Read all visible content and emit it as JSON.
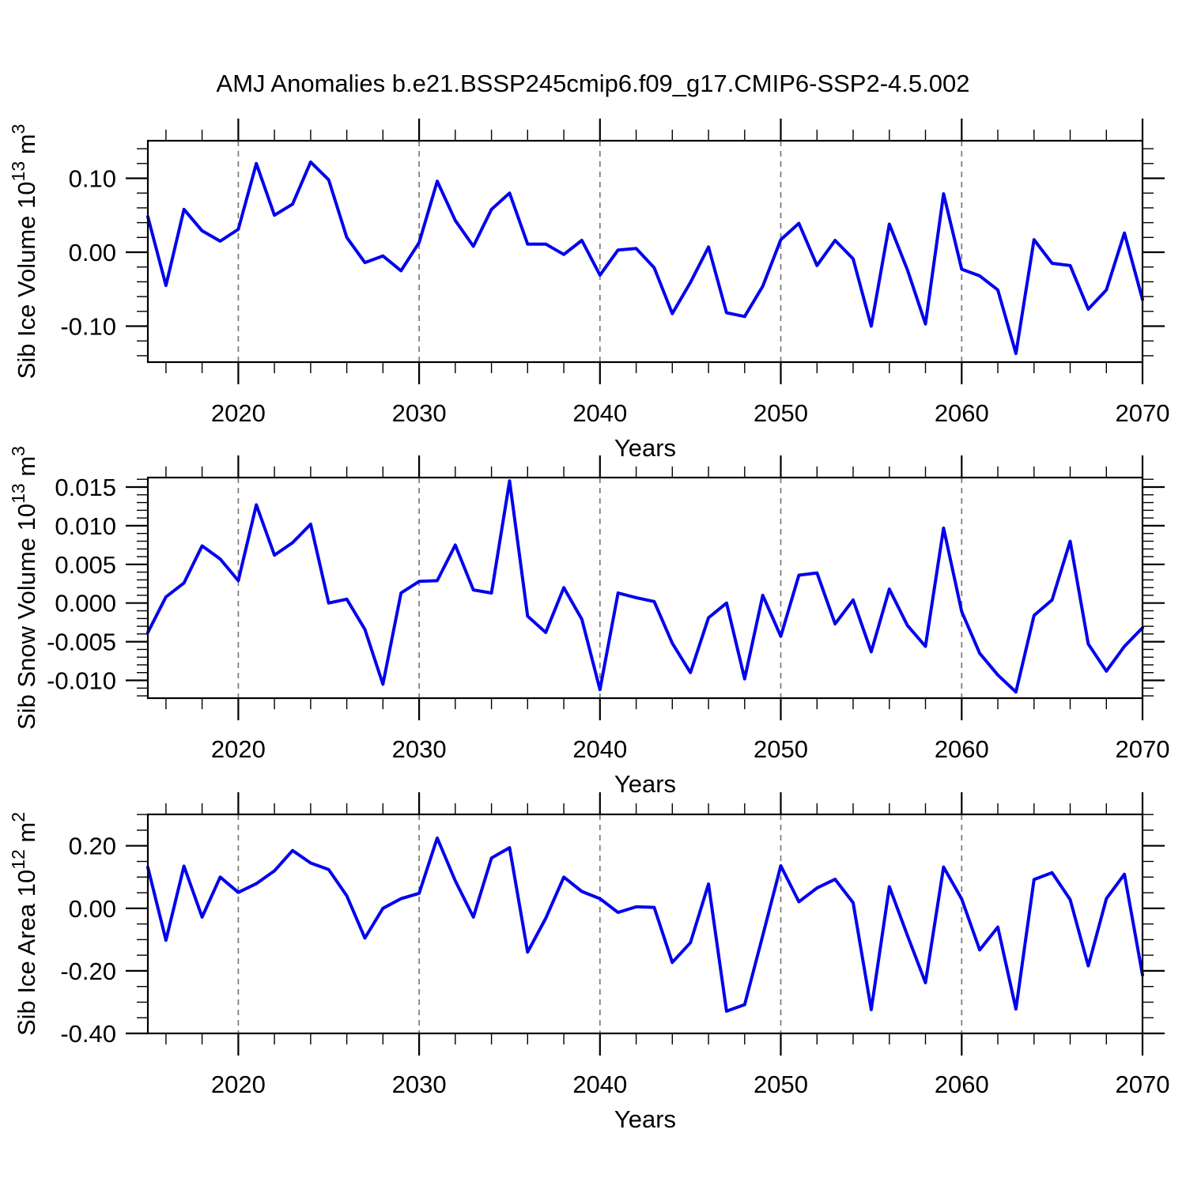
{
  "title": "AMJ Anomalies b.e21.BSSP245cmip6.f09_g17.CMIP6-SSP2-4.5.002",
  "colors": {
    "line": "#0000EE",
    "axis": "#000000",
    "grid": "#7A7A7A",
    "text": "#000000",
    "background": "#FFFFFF"
  },
  "x_axis": {
    "label": "Years",
    "start_year": 2015,
    "end_year": 2070,
    "tick_values": [
      2020,
      2030,
      2040,
      2050,
      2060,
      2070
    ],
    "tick_labels": [
      "2020",
      "2030",
      "2040",
      "2050",
      "2060",
      "2070"
    ],
    "minor_step": 2,
    "gridline_years": [
      2020,
      2030,
      2040,
      2050,
      2060
    ],
    "years": [
      2015,
      2016,
      2017,
      2018,
      2019,
      2020,
      2021,
      2022,
      2023,
      2024,
      2025,
      2026,
      2027,
      2028,
      2029,
      2030,
      2031,
      2032,
      2033,
      2034,
      2035,
      2036,
      2037,
      2038,
      2039,
      2040,
      2041,
      2042,
      2043,
      2044,
      2045,
      2046,
      2047,
      2048,
      2049,
      2050,
      2051,
      2052,
      2053,
      2054,
      2055,
      2056,
      2057,
      2058,
      2059,
      2060,
      2061,
      2062,
      2063,
      2064,
      2065,
      2066,
      2067,
      2068,
      2069,
      2070
    ]
  },
  "chart_data": [
    {
      "type": "line",
      "id": "sib-ice-volume",
      "ylabel_plain": "Sib Ice Volume 10^13 m^3",
      "ylabel_parts": [
        [
          "Sib Ice Volume 10",
          "normal"
        ],
        [
          "13",
          "sup"
        ],
        [
          " m",
          "normal"
        ],
        [
          "3",
          "sup"
        ]
      ],
      "xlabel": "Years",
      "xlim": [
        2015,
        2070
      ],
      "ylim": [
        -0.1487,
        0.1508
      ],
      "grid": "x-dashed",
      "legend": "none",
      "yticks": [
        {
          "value": 0.1,
          "label": "0.10"
        },
        {
          "value": 0.0,
          "label": "0.00"
        },
        {
          "value": -0.1,
          "label": "-0.10"
        }
      ],
      "ytick_minor_step": 0.02,
      "values": [
        0.048,
        -0.045,
        0.058,
        0.029,
        0.015,
        0.031,
        0.12,
        0.05,
        0.065,
        0.122,
        0.098,
        0.02,
        -0.014,
        -0.005,
        -0.025,
        0.013,
        0.096,
        0.043,
        0.008,
        0.058,
        0.08,
        0.011,
        0.011,
        -0.003,
        0.016,
        -0.031,
        0.003,
        0.005,
        -0.021,
        -0.083,
        -0.041,
        0.007,
        -0.082,
        -0.087,
        -0.046,
        0.017,
        0.039,
        -0.018,
        0.016,
        -0.009,
        -0.1,
        0.038,
        -0.024,
        -0.097,
        0.079,
        -0.023,
        -0.032,
        -0.051,
        -0.137,
        0.017,
        -0.015,
        -0.018,
        -0.077,
        -0.051,
        0.026,
        -0.064
      ]
    },
    {
      "type": "line",
      "id": "sib-snow-volume",
      "ylabel_plain": "Sib Snow Volume 10^13 m^3",
      "ylabel_parts": [
        [
          "Sib Snow Volume 10",
          "normal"
        ],
        [
          "13",
          "sup"
        ],
        [
          " m",
          "normal"
        ],
        [
          "3",
          "sup"
        ]
      ],
      "xlabel": "Years",
      "xlim": [
        2015,
        2070
      ],
      "ylim": [
        -0.0123,
        0.01623
      ],
      "grid": "x-dashed",
      "legend": "none",
      "yticks": [
        {
          "value": 0.015,
          "label": "0.015"
        },
        {
          "value": 0.01,
          "label": "0.010"
        },
        {
          "value": 0.005,
          "label": "0.005"
        },
        {
          "value": 0.0,
          "label": "0.000"
        },
        {
          "value": -0.005,
          "label": "-0.005"
        },
        {
          "value": -0.01,
          "label": "-0.010"
        }
      ],
      "ytick_minor_step": 0.001,
      "values": [
        -0.0038,
        0.0008,
        0.0026,
        0.0074,
        0.0057,
        0.0029,
        0.0127,
        0.0062,
        0.0078,
        0.0102,
        0.0,
        0.0005,
        -0.0034,
        -0.0105,
        0.0013,
        0.0028,
        0.0029,
        0.0075,
        0.0017,
        0.0013,
        0.0158,
        -0.0017,
        -0.0038,
        0.002,
        -0.0021,
        -0.0112,
        0.0013,
        0.0007,
        0.0002,
        -0.0052,
        -0.009,
        -0.0019,
        0.0,
        -0.0098,
        0.001,
        -0.0043,
        0.0036,
        0.0039,
        -0.0027,
        0.0004,
        -0.0063,
        0.0018,
        -0.0029,
        -0.0056,
        0.0097,
        -0.0011,
        -0.0065,
        -0.0093,
        -0.0115,
        -0.0016,
        0.0004,
        0.008,
        -0.0053,
        -0.0088,
        -0.0056,
        -0.0032
      ]
    },
    {
      "type": "line",
      "id": "sib-ice-area",
      "ylabel_plain": "Sib Ice Area 10^12 m^2",
      "ylabel_parts": [
        [
          "Sib Ice Area 10",
          "normal"
        ],
        [
          "12",
          "sup"
        ],
        [
          " m",
          "normal"
        ],
        [
          "2",
          "sup"
        ]
      ],
      "xlabel": "Years",
      "xlim": [
        2015,
        2070
      ],
      "ylim": [
        -0.4,
        0.3005
      ],
      "grid": "x-dashed",
      "legend": "none",
      "yticks": [
        {
          "value": 0.2,
          "label": "0.20"
        },
        {
          "value": 0.0,
          "label": "0.00"
        },
        {
          "value": -0.2,
          "label": "-0.20"
        },
        {
          "value": -0.4,
          "label": "-0.40"
        }
      ],
      "ytick_minor_step": 0.05,
      "values": [
        0.131,
        -0.102,
        0.135,
        -0.028,
        0.1,
        0.051,
        0.079,
        0.12,
        0.185,
        0.145,
        0.124,
        0.04,
        -0.095,
        0.0,
        0.031,
        0.048,
        0.225,
        0.088,
        -0.028,
        0.161,
        0.194,
        -0.14,
        -0.032,
        0.1,
        0.054,
        0.031,
        -0.013,
        0.005,
        0.003,
        -0.173,
        -0.11,
        0.078,
        -0.329,
        -0.308,
        -0.087,
        0.136,
        0.021,
        0.065,
        0.093,
        0.018,
        -0.324,
        0.069,
        -0.087,
        -0.238,
        0.132,
        0.03,
        -0.133,
        -0.06,
        -0.322,
        0.092,
        0.114,
        0.028,
        -0.184,
        0.031,
        0.109,
        -0.213
      ]
    }
  ]
}
